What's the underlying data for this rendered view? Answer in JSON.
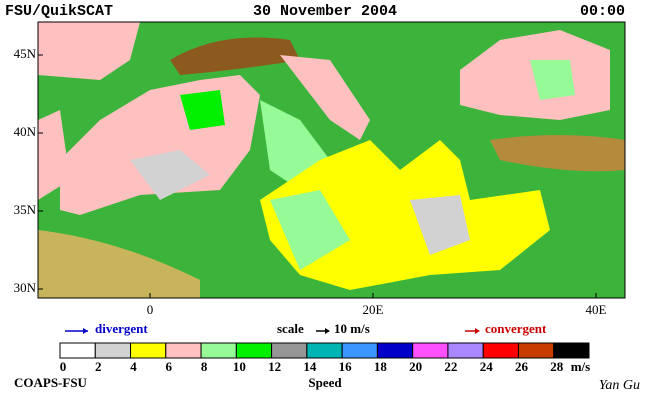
{
  "header": {
    "title": "FSU/QuikSCAT",
    "date": "30 November 2004",
    "time": "00:00"
  },
  "map": {
    "lat_labels": [
      {
        "value": 45,
        "label": "45N"
      },
      {
        "value": 40,
        "label": "40N"
      },
      {
        "value": 35,
        "label": "35N"
      },
      {
        "value": 30,
        "label": "30N"
      }
    ],
    "lon_labels": [
      0,
      {
        "value": 20,
        "label": "20E"
      },
      {
        "value": 40,
        "label": "40E"
      }
    ]
  },
  "legend": {
    "divergent": "divergent",
    "scale": "scale",
    "scale_value": "10 m/s",
    "convergent": "convergent"
  },
  "colorbar": {
    "title": "Speed",
    "unit": "m/s",
    "ticks": [
      0,
      2,
      4,
      6,
      8,
      10,
      12,
      14,
      16,
      18,
      20,
      22,
      24,
      26,
      28
    ],
    "colors": [
      "#ffffff",
      "#d2d2d2",
      "#ffff00",
      "#ffc0c0",
      "#96fa96",
      "#00f000",
      "#969696",
      "#00b4b4",
      "#3c96ff",
      "#0000c8",
      "#ff50ff",
      "#aa87ff",
      "#ff0000",
      "#c83c00",
      "#000000"
    ]
  },
  "footer": {
    "left": "COAPS-FSU",
    "right": "Yan Gu"
  }
}
